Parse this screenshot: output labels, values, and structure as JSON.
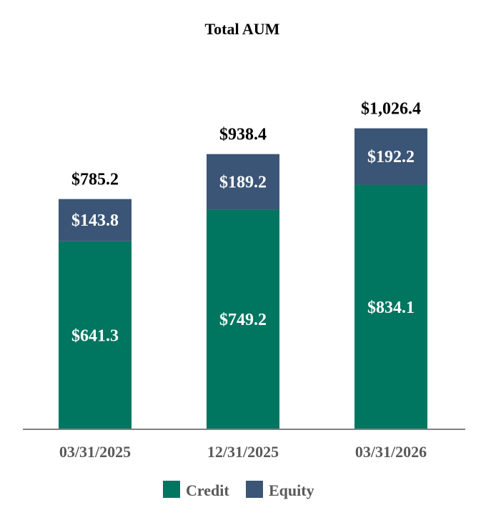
{
  "chart_data": {
    "type": "bar",
    "stacked": true,
    "title": "Total AUM",
    "categories": [
      "03/31/2025",
      "12/31/2025",
      "03/31/2026"
    ],
    "series": [
      {
        "name": "Credit",
        "values": [
          641.3,
          749.2,
          834.1
        ],
        "labels": [
          "$641.3",
          "$749.2",
          "$834.1"
        ],
        "color": "#007560"
      },
      {
        "name": "Equity",
        "values": [
          143.8,
          189.2,
          192.2
        ],
        "labels": [
          "$143.8",
          "$189.2",
          "$192.2"
        ],
        "color": "#3b5576"
      }
    ],
    "totals": [
      "$785.2",
      "$938.4",
      "$1,026.4"
    ],
    "xlabel": "",
    "ylabel": "",
    "ylim": [
      0,
      1230
    ],
    "axis_color": "#808080",
    "grid": false,
    "legend_position": "bottom"
  }
}
